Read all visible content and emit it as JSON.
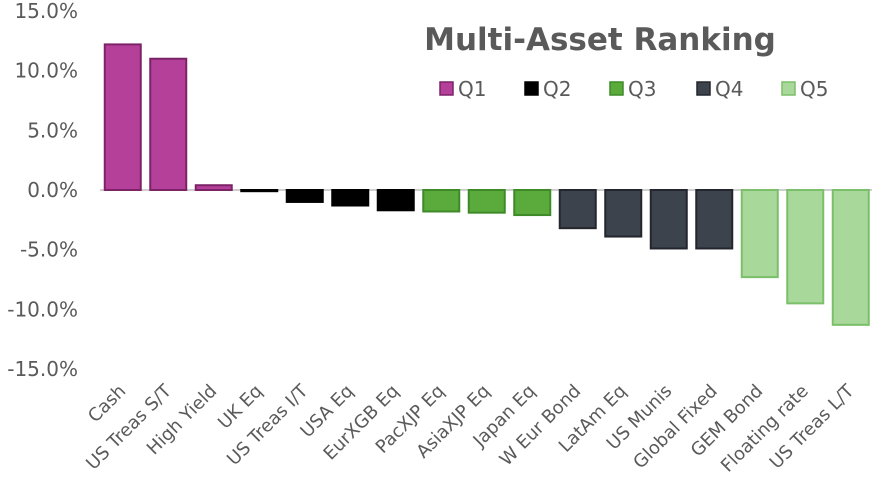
{
  "chart_data": {
    "type": "bar",
    "title": "Multi-Asset Ranking",
    "xlabel": "",
    "ylabel": "",
    "ylim": [
      -15,
      15
    ],
    "yticks": [
      15,
      10,
      5,
      0,
      -5,
      -10,
      -15
    ],
    "ytick_labels": [
      "15.0%",
      "10.0%",
      "5.0%",
      "0.0%",
      "-5.0%",
      "-10.0%",
      "-15.0%"
    ],
    "grid": false,
    "legend_position": "top-right",
    "legend": [
      {
        "name": "Q1",
        "color": "#b5409a",
        "edge": "#7c2368"
      },
      {
        "name": "Q2",
        "color": "#000000",
        "edge": "#000000"
      },
      {
        "name": "Q3",
        "color": "#5aab3c",
        "edge": "#3f8a28"
      },
      {
        "name": "Q4",
        "color": "#3d434c",
        "edge": "#23272d"
      },
      {
        "name": "Q5",
        "color": "#a8d99a",
        "edge": "#7bbf6a"
      }
    ],
    "categories": [
      "Cash",
      "US Treas S/T",
      "High Yield",
      "UK Eq",
      "US Treas I/T",
      "USA Eq",
      "EurXGB Eq",
      "PacXJP Eq",
      "AsiaXJP Eq",
      "Japan Eq",
      "W Eur Bond",
      "LatAm Eq",
      "US Munis",
      "Global Fixed",
      "GEM Bond",
      "Floating rate",
      "US Treas L/T"
    ],
    "values": [
      12.2,
      11.0,
      0.4,
      -0.1,
      -1.0,
      -1.3,
      -1.7,
      -1.8,
      -1.9,
      -2.1,
      -3.2,
      -3.9,
      -4.9,
      -4.9,
      -7.3,
      -9.5,
      -11.3
    ],
    "quintile": [
      "Q1",
      "Q1",
      "Q1",
      "Q2",
      "Q2",
      "Q2",
      "Q2",
      "Q3",
      "Q3",
      "Q3",
      "Q4",
      "Q4",
      "Q4",
      "Q4",
      "Q5",
      "Q5",
      "Q5"
    ]
  }
}
